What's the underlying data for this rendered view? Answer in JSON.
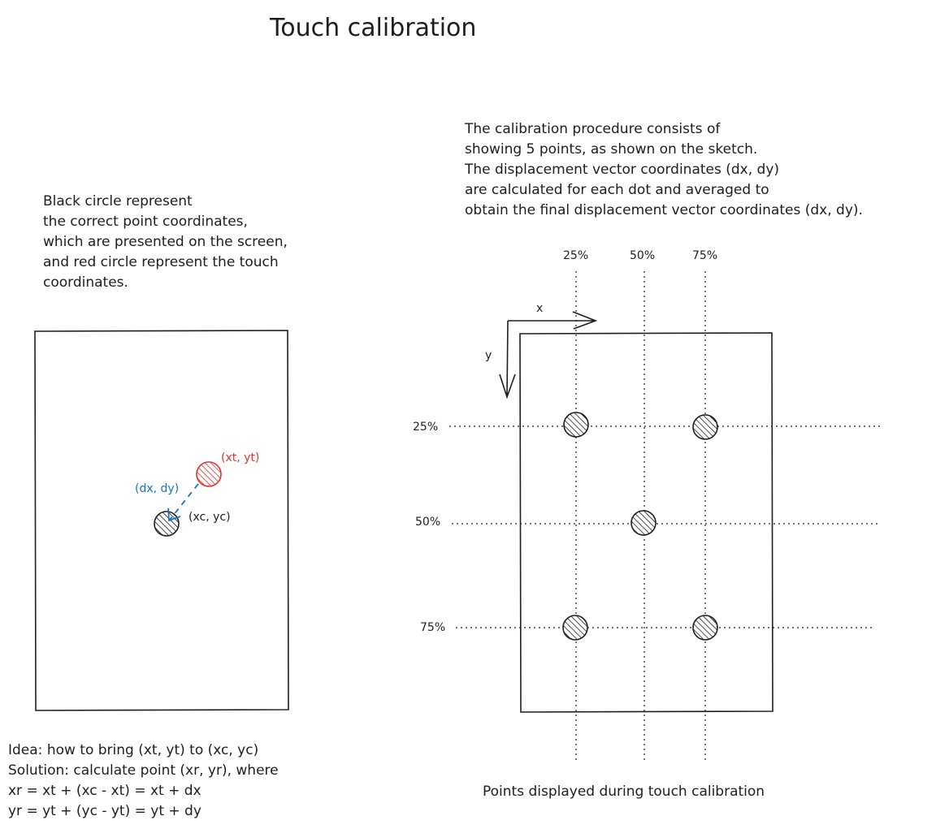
{
  "title": "Touch calibration",
  "left_note": [
    "Black circle represent",
    "the correct point coordinates,",
    "which are presented on the screen,",
    "and red circle represent the touch",
    "coordinates."
  ],
  "right_note": [
    "The calibration procedure consists of",
    "showing 5 points, as shown on the sketch.",
    "The displacement vector coordinates (dx, dy)",
    "are calculated for each dot and averaged to",
    "obtain the final displacement vector coordinates (dx, dy)."
  ],
  "left_sketch": {
    "touch_label": "(xt, yt)",
    "correct_label": "(xc, yc)",
    "vector_label": "(dx, dy)"
  },
  "idea_lines": [
    "Idea: how to bring (xt, yt) to (xc, yc)",
    "Solution: calculate point (xr, yr), where",
    "xr = xt + (xc - xt) = xt + dx",
    "yr = yt + (yc - yt) = yt + dy"
  ],
  "right_sketch": {
    "col_labels": [
      "25%",
      "50%",
      "75%"
    ],
    "row_labels": [
      "25%",
      "50%",
      "75%"
    ],
    "axis_x_label": "x",
    "axis_y_label": "y",
    "calibration_points": [
      {
        "col": "25%",
        "row": "25%"
      },
      {
        "col": "75%",
        "row": "25%"
      },
      {
        "col": "50%",
        "row": "50%"
      },
      {
        "col": "25%",
        "row": "75%"
      },
      {
        "col": "75%",
        "row": "75%"
      }
    ],
    "caption": "Points displayed during touch calibration"
  },
  "colors": {
    "ink": "#1e1e1e",
    "touch_point": "#e03131",
    "vector": "#1971c2"
  }
}
